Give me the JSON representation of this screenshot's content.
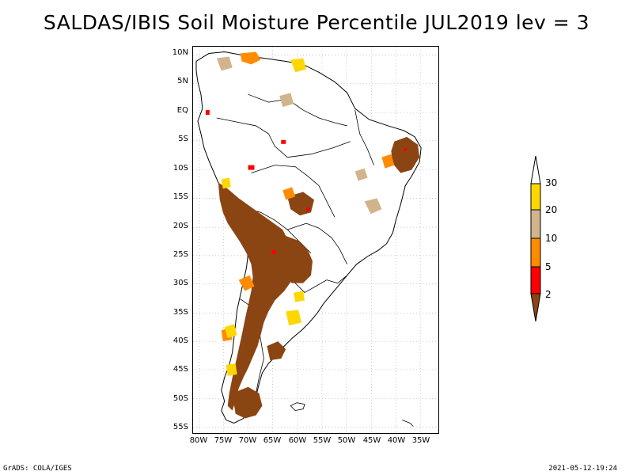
{
  "title": "SALDAS/IBIS Soil Moisture Percentile JUL2019 lev = 3",
  "map": {
    "region": "South America",
    "lat_labels": [
      "10N",
      "5N",
      "EQ",
      "5S",
      "10S",
      "15S",
      "20S",
      "25S",
      "30S",
      "35S",
      "40S",
      "45S",
      "50S",
      "55S"
    ],
    "lon_labels": [
      "80W",
      "75W",
      "70W",
      "65W",
      "60W",
      "55W",
      "50W",
      "45W",
      "40W",
      "35W"
    ],
    "gridlines": "dotted"
  },
  "colorbar": {
    "labels": [
      "2",
      "5",
      "10",
      "20",
      "30"
    ],
    "colors": {
      "below_2": "#8B4513",
      "2_to_5": "#FF0000",
      "5_to_10": "#FF8C00",
      "10_to_20": "#D2B48C",
      "20_to_30": "#FFD700",
      "above_30": "#FFFFFF"
    }
  },
  "footer": {
    "left": "GrADS: COLA/IGES",
    "right": "2021-05-12-19:24"
  }
}
